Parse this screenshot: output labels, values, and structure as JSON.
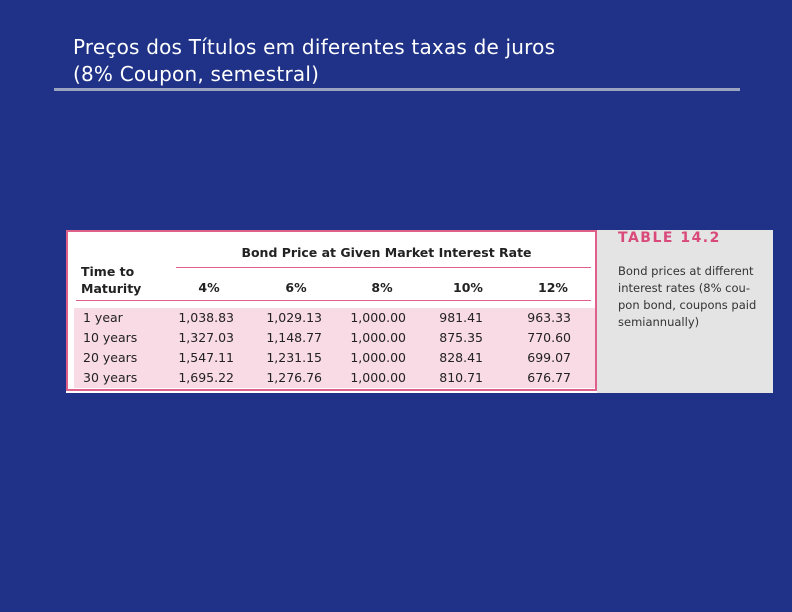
{
  "slide": {
    "title_line1": "Preços dos Títulos em diferentes taxas de juros",
    "title_line2": "(8% Coupon, semestral)"
  },
  "table": {
    "group_header": "Bond Price at Given Market Interest Rate",
    "row_header_line1": "Time to",
    "row_header_line2": "Maturity",
    "columns": [
      "4%",
      "6%",
      "8%",
      "10%",
      "12%"
    ],
    "rows": [
      {
        "label": "1 year",
        "values": [
          "1,038.83",
          "1,029.13",
          "1,000.00",
          "981.41",
          "963.33"
        ]
      },
      {
        "label": "10 years",
        "values": [
          "1,327.03",
          "1,148.77",
          "1,000.00",
          "875.35",
          "770.60"
        ]
      },
      {
        "label": "20 years",
        "values": [
          "1,547.11",
          "1,231.15",
          "1,000.00",
          "828.41",
          "699.07"
        ]
      },
      {
        "label": "30 years",
        "values": [
          "1,695.22",
          "1,276.76",
          "1,000.00",
          "810.71",
          "676.77"
        ]
      }
    ]
  },
  "caption": {
    "title": "TABLE 14.2",
    "lines": [
      "Bond prices at different",
      "interest rates (8% cou-",
      "pon bond, coupons paid",
      "semiannually)"
    ]
  },
  "colors": {
    "background": "#1f3287",
    "accent_pink": "#e0608c",
    "row_shade": "#f9dbe6",
    "caption_title": "#d94a7b"
  }
}
